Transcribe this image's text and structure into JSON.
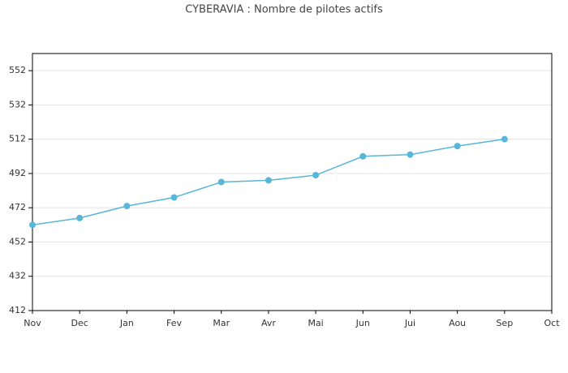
{
  "chart_data": {
    "type": "line",
    "title": "CYBERAVIA : Nombre de pilotes actifs",
    "categories": [
      "Nov",
      "Dec",
      "Jan",
      "Fev",
      "Mar",
      "Avr",
      "Mai",
      "Jun",
      "Jui",
      "Aou",
      "Sep",
      "Oct"
    ],
    "series": [
      {
        "name": "Pilotes actifs",
        "color": "#58b6d8",
        "values": [
          462,
          466,
          473,
          478,
          487,
          488,
          491,
          502,
          503,
          508,
          512,
          null
        ]
      }
    ],
    "ylim": [
      412,
      562
    ],
    "yticks": [
      412,
      432,
      452,
      472,
      492,
      512,
      532,
      552
    ],
    "grid": true
  }
}
